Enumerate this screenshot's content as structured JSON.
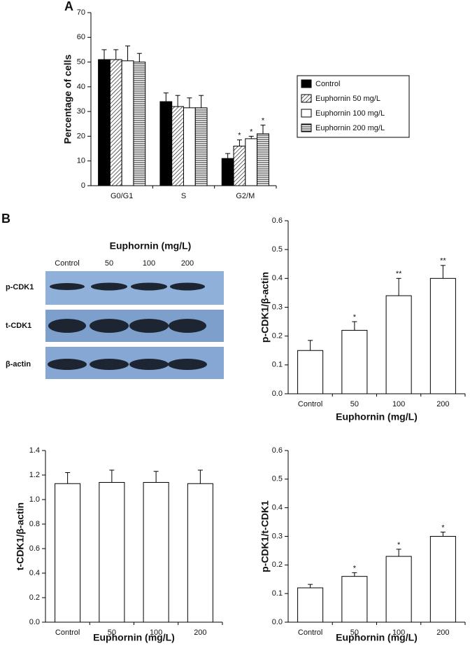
{
  "panels": [
    "A",
    "B"
  ],
  "blot": {
    "title": "Euphornin (mg/L)",
    "lanes": [
      "Control",
      "50",
      "100",
      "200"
    ],
    "rows": [
      "p-CDK1",
      "t-CDK1",
      "β-actin"
    ]
  },
  "chart_data": [
    {
      "type": "bar",
      "y_label": "Percentage of cells",
      "categories": [
        "G0/G1",
        "S",
        "G2/M"
      ],
      "ylim": [
        0,
        70
      ],
      "yticks": [
        0,
        10,
        20,
        30,
        40,
        50,
        60,
        70
      ],
      "legend": "right",
      "series": [
        {
          "name": "Control",
          "color": "#000000",
          "pattern": "solid",
          "values": [
            51,
            34,
            11
          ],
          "errors": [
            4,
            3.5,
            2
          ],
          "annotations": [
            null,
            null,
            null
          ]
        },
        {
          "name": "Euphornin 50 mg/L",
          "color": "#000000",
          "pattern": "diagonal",
          "values": [
            51,
            32,
            16
          ],
          "errors": [
            4,
            4.5,
            2.5
          ],
          "annotations": [
            null,
            null,
            "*"
          ]
        },
        {
          "name": "Euphornin 100 mg/L",
          "color": "#000000",
          "pattern": "none",
          "values": [
            50.5,
            31.5,
            19
          ],
          "errors": [
            6,
            4,
            1
          ],
          "annotations": [
            null,
            null,
            "*"
          ]
        },
        {
          "name": "Euphornin 200 mg/L",
          "color": "#000000",
          "pattern": "horizontal",
          "values": [
            50,
            31.5,
            21
          ],
          "errors": [
            3.5,
            5,
            3.5
          ],
          "annotations": [
            null,
            null,
            "*"
          ]
        }
      ]
    },
    {
      "type": "bar",
      "y_label": "p-CDK1/β-actin",
      "x_label": "Euphornin (mg/L)",
      "categories": [
        "Control",
        "50",
        "100",
        "200"
      ],
      "ylim": [
        0,
        0.6
      ],
      "yticks": [
        {
          "value": 0,
          "label": "0.0"
        },
        0.1,
        0.2,
        0.3,
        0.4,
        0.5,
        0.6
      ],
      "color": "#000000",
      "pattern": "none",
      "values": [
        0.15,
        0.22,
        0.34,
        0.4
      ],
      "errors": [
        0.035,
        0.03,
        0.06,
        0.045
      ],
      "annotations": [
        null,
        "*",
        "**",
        "**"
      ]
    },
    {
      "type": "bar",
      "y_label": "t-CDK1/β-actin",
      "x_label": "Euphornin (mg/L)",
      "categories": [
        "Control",
        "50",
        "100",
        "200"
      ],
      "ylim": [
        0,
        1.4
      ],
      "yticks": [
        {
          "value": 0,
          "label": "0.0"
        },
        0.2,
        0.4,
        0.6,
        0.8,
        {
          "value": 1,
          "label": "1.0"
        },
        1.2,
        1.4
      ],
      "color": "#000000",
      "pattern": "none",
      "values": [
        1.13,
        1.14,
        1.14,
        1.13
      ],
      "errors": [
        0.09,
        0.1,
        0.09,
        0.11
      ],
      "annotations": [
        null,
        null,
        null,
        null
      ]
    },
    {
      "type": "bar",
      "y_label": "p-CDK1/t-CDK1",
      "x_label": "Euphornin (mg/L)",
      "categories": [
        "Control",
        "50",
        "100",
        "200"
      ],
      "ylim": [
        0,
        0.6
      ],
      "yticks": [
        {
          "value": 0,
          "label": "0.0"
        },
        0.1,
        0.2,
        0.3,
        0.4,
        0.5,
        0.6
      ],
      "color": "#000000",
      "pattern": "none",
      "values": [
        0.12,
        0.16,
        0.23,
        0.3
      ],
      "errors": [
        0.012,
        0.013,
        0.025,
        0.015
      ],
      "annotations": [
        null,
        "*",
        "*",
        "*"
      ]
    }
  ]
}
